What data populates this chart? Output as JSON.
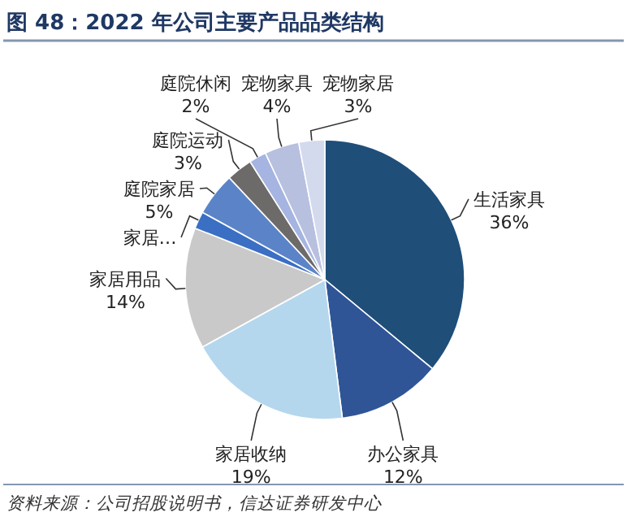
{
  "chart_data": {
    "type": "pie",
    "title": "图 48：2022 年公司主要产品品类结构",
    "categories": [
      "生活家具",
      "办公家具",
      "家居收纳",
      "家居用品",
      "家居…",
      "庭院家居",
      "庭院运动",
      "庭院休闲",
      "宠物家具",
      "宠物家居"
    ],
    "values": [
      36,
      12,
      19,
      14,
      2,
      5,
      3,
      2,
      4,
      3
    ],
    "value_labels": [
      "36%",
      "12%",
      "19%",
      "14%",
      null,
      "5%",
      "3%",
      "2%",
      "4%",
      "3%"
    ],
    "colors": [
      "#1f4e79",
      "#2f5597",
      "#b4d7ee",
      "#c9c9c9",
      "#3a6fc4",
      "#5b84c8",
      "#6d6a6a",
      "#a5b4e0",
      "#b8c0e0",
      "#d3daee"
    ],
    "annotations": [
      "资料来源：公司招股说明书，信达证券研发中心"
    ]
  }
}
